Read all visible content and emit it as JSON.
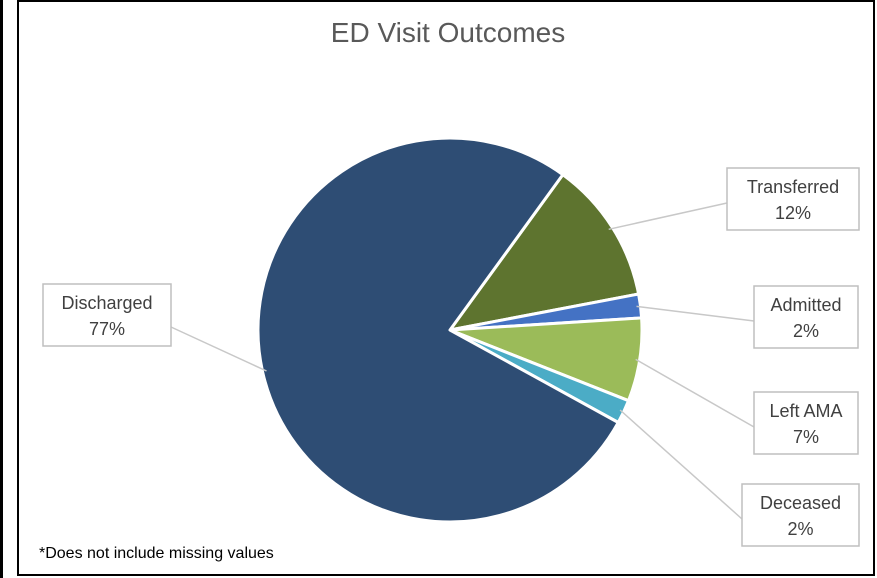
{
  "chart_data": {
    "type": "pie",
    "title": "ED Visit Outcomes",
    "footnote": "*Does not include missing values",
    "slices": [
      {
        "name": "Transferred",
        "value": 12,
        "label": "12%",
        "color": "#5E742F"
      },
      {
        "name": "Admitted",
        "value": 2,
        "label": "2%",
        "color": "#4472C4"
      },
      {
        "name": "Left AMA",
        "value": 7,
        "label": "7%",
        "color": "#9BBB59"
      },
      {
        "name": "Deceased",
        "value": 2,
        "label": "2%",
        "color": "#4BACC6"
      },
      {
        "name": "Discharged",
        "value": 77,
        "label": "77%",
        "color": "#2E4D74"
      }
    ],
    "legend": "none",
    "data_labels": "callout"
  }
}
